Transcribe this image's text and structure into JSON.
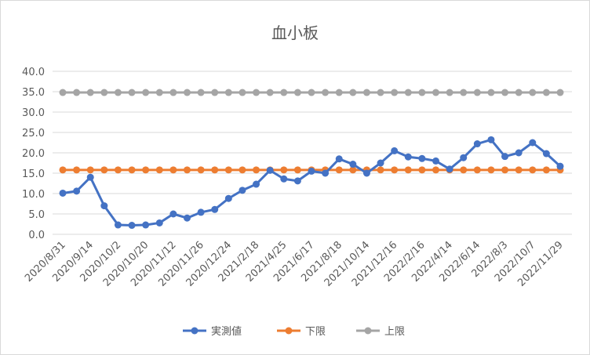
{
  "chart_data": {
    "type": "line",
    "title": "血小板",
    "xlabel": "",
    "ylabel": "",
    "ylim": [
      0,
      40
    ],
    "yticks": [
      "0.0",
      "5.0",
      "10.0",
      "15.0",
      "20.0",
      "25.0",
      "30.0",
      "35.0",
      "40.0"
    ],
    "grid": true,
    "legend": "bottom",
    "x_tick_labels": [
      "2020/8/31",
      "2020/9/14",
      "2020/10/2",
      "2020/10/20",
      "2020/11/12",
      "2020/11/26",
      "2020/12/24",
      "2021/2/18",
      "2021/4/25",
      "2021/6/17",
      "2021/8/18",
      "2021/10/14",
      "2021/12/16",
      "2022/2/16",
      "2022/4/14",
      "2022/6/14",
      "2022/8/3",
      "2022/10/7",
      "2022/11/29"
    ],
    "point_count": 37,
    "series": [
      {
        "name": "実測値",
        "color": "#4472C4",
        "values": [
          10.1,
          10.6,
          14.0,
          7.0,
          2.3,
          2.2,
          2.3,
          2.8,
          5.0,
          4.0,
          5.4,
          6.1,
          8.8,
          10.8,
          12.3,
          15.7,
          13.6,
          13.1,
          15.5,
          15.0,
          18.5,
          17.2,
          15.0,
          17.5,
          20.5,
          19.0,
          18.6,
          18.0,
          16.0,
          18.8,
          22.2,
          23.2,
          19.1,
          20.0,
          22.5,
          19.8,
          16.7
        ]
      },
      {
        "name": "下限",
        "color": "#ED7D31",
        "values": [
          15.8,
          15.8,
          15.8,
          15.8,
          15.8,
          15.8,
          15.8,
          15.8,
          15.8,
          15.8,
          15.8,
          15.8,
          15.8,
          15.8,
          15.8,
          15.8,
          15.8,
          15.8,
          15.8,
          15.8,
          15.8,
          15.8,
          15.8,
          15.8,
          15.8,
          15.8,
          15.8,
          15.8,
          15.8,
          15.8,
          15.8,
          15.8,
          15.8,
          15.8,
          15.8,
          15.8,
          15.8
        ]
      },
      {
        "name": "上限",
        "color": "#A5A5A5",
        "values": [
          34.8,
          34.8,
          34.8,
          34.8,
          34.8,
          34.8,
          34.8,
          34.8,
          34.8,
          34.8,
          34.8,
          34.8,
          34.8,
          34.8,
          34.8,
          34.8,
          34.8,
          34.8,
          34.8,
          34.8,
          34.8,
          34.8,
          34.8,
          34.8,
          34.8,
          34.8,
          34.8,
          34.8,
          34.8,
          34.8,
          34.8,
          34.8,
          34.8,
          34.8,
          34.8,
          34.8,
          34.8
        ]
      }
    ]
  }
}
